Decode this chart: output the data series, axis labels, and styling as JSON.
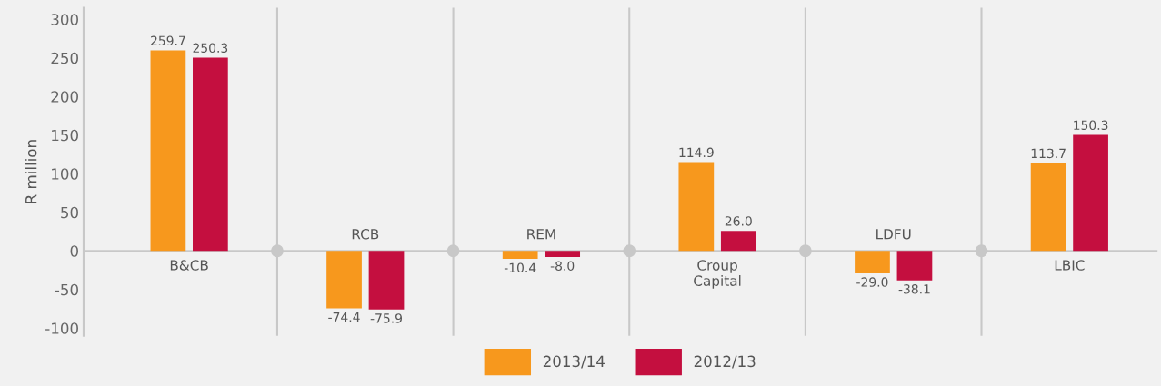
{
  "chart_data": {
    "type": "bar",
    "ylabel": "R million",
    "categories": [
      "B&CB",
      "RCB",
      "REM",
      "Croup\nCapital",
      "LDFU",
      "LBIC"
    ],
    "series": [
      {
        "name": "2013/14",
        "color": "#f7981d",
        "values": [
          259.7,
          -74.4,
          -10.4,
          114.9,
          -29.0,
          113.7
        ]
      },
      {
        "name": "2012/13",
        "color": "#c40f3f",
        "values": [
          250.3,
          -75.9,
          -8.0,
          26.0,
          -38.1,
          150.3
        ]
      }
    ],
    "value_labels": [
      [
        "259.7",
        "-74.4",
        "-10.4",
        "114.9",
        "-29.0",
        "113.7"
      ],
      [
        "250.3",
        "-75.9",
        "-8.0",
        "26.0",
        "-38.1",
        "150.3"
      ]
    ],
    "ylim": [
      -110,
      315
    ],
    "yticks": [
      -100,
      -50,
      0,
      50,
      100,
      150,
      200,
      250,
      300
    ],
    "grid": false,
    "legend": "bottom"
  }
}
